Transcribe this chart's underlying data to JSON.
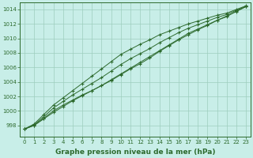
{
  "x": [
    0,
    1,
    2,
    3,
    4,
    5,
    6,
    7,
    8,
    9,
    10,
    11,
    12,
    13,
    14,
    15,
    16,
    17,
    18,
    19,
    20,
    21,
    22,
    23
  ],
  "line1": [
    997.5,
    998.0,
    999.0,
    1000.0,
    1000.8,
    1001.5,
    1002.2,
    1002.8,
    1003.5,
    1004.2,
    1005.0,
    1005.8,
    1006.5,
    1007.3,
    1008.2,
    1009.0,
    1009.8,
    1010.5,
    1011.2,
    1011.8,
    1012.5,
    1013.0,
    1013.8,
    1014.4
  ],
  "line2": [
    997.5,
    998.2,
    999.5,
    1000.8,
    1001.8,
    1002.8,
    1003.8,
    1004.8,
    1005.8,
    1006.8,
    1007.8,
    1008.5,
    1009.2,
    1009.8,
    1010.5,
    1011.0,
    1011.5,
    1012.0,
    1012.4,
    1012.8,
    1013.2,
    1013.5,
    1014.0,
    1014.5
  ],
  "line3": [
    997.5,
    998.1,
    999.2,
    1000.4,
    1001.3,
    1002.2,
    1003.0,
    1003.8,
    1004.6,
    1005.5,
    1006.4,
    1007.2,
    1007.9,
    1008.6,
    1009.4,
    1010.1,
    1010.8,
    1011.4,
    1011.9,
    1012.4,
    1012.9,
    1013.3,
    1013.9,
    1014.4
  ],
  "line4": [
    997.5,
    998.0,
    998.9,
    999.8,
    1000.6,
    1001.4,
    1002.1,
    1002.8,
    1003.5,
    1004.3,
    1005.1,
    1005.9,
    1006.7,
    1007.5,
    1008.3,
    1009.1,
    1009.9,
    1010.7,
    1011.3,
    1011.9,
    1012.5,
    1013.1,
    1013.7,
    1014.4
  ],
  "line_color": "#2d6a2d",
  "bg_color": "#c8eee8",
  "grid_color": "#9ecebe",
  "ylabel_ticks": [
    998,
    1000,
    1002,
    1004,
    1006,
    1008,
    1010,
    1012,
    1014
  ],
  "ylim": [
    996.5,
    1015.0
  ],
  "xlim": [
    -0.5,
    23.5
  ],
  "xlabel": "Graphe pression niveau de la mer (hPa)",
  "xlabel_fontsize": 6.5,
  "tick_fontsize": 5.0,
  "marker": "+",
  "marker_size": 3.5,
  "linewidth": 0.7
}
